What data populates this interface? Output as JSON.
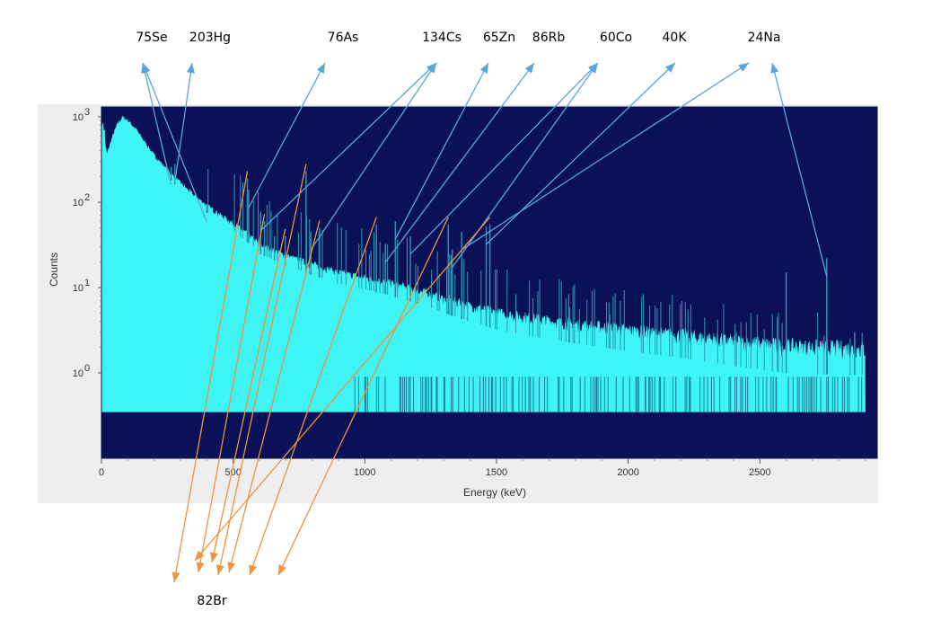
{
  "chart_data": {
    "type": "line",
    "title": "",
    "xlabel": "Energy (keV)",
    "ylabel": "Counts",
    "xlim": [
      0,
      2950
    ],
    "ylim": [
      0.35,
      4500
    ],
    "yscale": "log",
    "x_ticks": [
      0,
      500,
      1000,
      1500,
      2000,
      2500
    ],
    "y_ticks": [
      {
        "value": 1,
        "label": "10",
        "exp": "0"
      },
      {
        "value": 10,
        "label": "10",
        "exp": "1"
      },
      {
        "value": 100,
        "label": "10",
        "exp": "2"
      },
      {
        "value": 1000,
        "label": "10",
        "exp": "3"
      }
    ],
    "grid": false,
    "colors": {
      "plot_background": "#0b1157",
      "spectrum": "#3ff4f4",
      "peak_line": "#2a8fa8",
      "panel": "#eeeeee",
      "top_arrows": "#5aa5da",
      "bottom_arrows": "#f0923e"
    },
    "continuum": [
      [
        5,
        700
      ],
      [
        20,
        300
      ],
      [
        40,
        480
      ],
      [
        60,
        700
      ],
      [
        80,
        850
      ],
      [
        100,
        780
      ],
      [
        130,
        620
      ],
      [
        160,
        450
      ],
      [
        200,
        300
      ],
      [
        250,
        200
      ],
      [
        300,
        140
      ],
      [
        350,
        100
      ],
      [
        400,
        75
      ],
      [
        450,
        58
      ],
      [
        500,
        45
      ],
      [
        550,
        35
      ],
      [
        600,
        25
      ],
      [
        700,
        18
      ],
      [
        800,
        14
      ],
      [
        900,
        11
      ],
      [
        1000,
        9.5
      ],
      [
        1100,
        8
      ],
      [
        1200,
        6.5
      ],
      [
        1300,
        5
      ],
      [
        1400,
        4
      ],
      [
        1500,
        3.2
      ],
      [
        1600,
        2.8
      ],
      [
        1800,
        2.2
      ],
      [
        2000,
        1.8
      ],
      [
        2200,
        1.5
      ],
      [
        2400,
        1.2
      ],
      [
        2600,
        1.0
      ],
      [
        2800,
        0.95
      ],
      [
        2900,
        0.95
      ]
    ],
    "peaks": [
      {
        "energy": 265,
        "counts": 260
      },
      {
        "energy": 279,
        "counts": 280
      },
      {
        "energy": 400,
        "counts": 95
      },
      {
        "energy": 554,
        "counts": 190
      },
      {
        "energy": 559,
        "counts": 140
      },
      {
        "energy": 604,
        "counts": 75
      },
      {
        "energy": 619,
        "counts": 60
      },
      {
        "energy": 657,
        "counts": 40
      },
      {
        "energy": 698,
        "counts": 40
      },
      {
        "energy": 777,
        "counts": 230
      },
      {
        "energy": 795,
        "counts": 45
      },
      {
        "energy": 828,
        "counts": 50
      },
      {
        "energy": 1044,
        "counts": 55
      },
      {
        "energy": 1078,
        "counts": 32
      },
      {
        "energy": 1116,
        "counts": 60
      },
      {
        "energy": 1173,
        "counts": 40
      },
      {
        "energy": 1317,
        "counts": 55
      },
      {
        "energy": 1332,
        "counts": 28
      },
      {
        "energy": 1368,
        "counts": 45
      },
      {
        "energy": 1461,
        "counts": 52
      },
      {
        "energy": 1475,
        "counts": 55
      },
      {
        "energy": 2600,
        "counts": 15
      },
      {
        "energy": 2754,
        "counts": 22
      },
      {
        "energy": 2860,
        "counts": 3
      }
    ]
  },
  "annotations": {
    "top": [
      {
        "label": "75Se",
        "targets": [
          264,
          400
        ]
      },
      {
        "label": "203Hg",
        "targets": [
          279
        ]
      },
      {
        "label": "76As",
        "targets": [
          559
        ]
      },
      {
        "label": "134Cs",
        "targets": [
          604,
          795
        ]
      },
      {
        "label": "65Zn",
        "targets": [
          1116
        ]
      },
      {
        "label": "86Rb",
        "targets": [
          1078
        ]
      },
      {
        "label": "60Co",
        "targets": [
          1173,
          1332
        ]
      },
      {
        "label": "40K",
        "targets": [
          1461
        ]
      },
      {
        "label": "24Na",
        "targets": [
          1368,
          2754
        ]
      }
    ],
    "bottom": {
      "label": "82Br",
      "targets": [
        554,
        619,
        698,
        777,
        828,
        1044,
        1317,
        1475
      ]
    }
  }
}
